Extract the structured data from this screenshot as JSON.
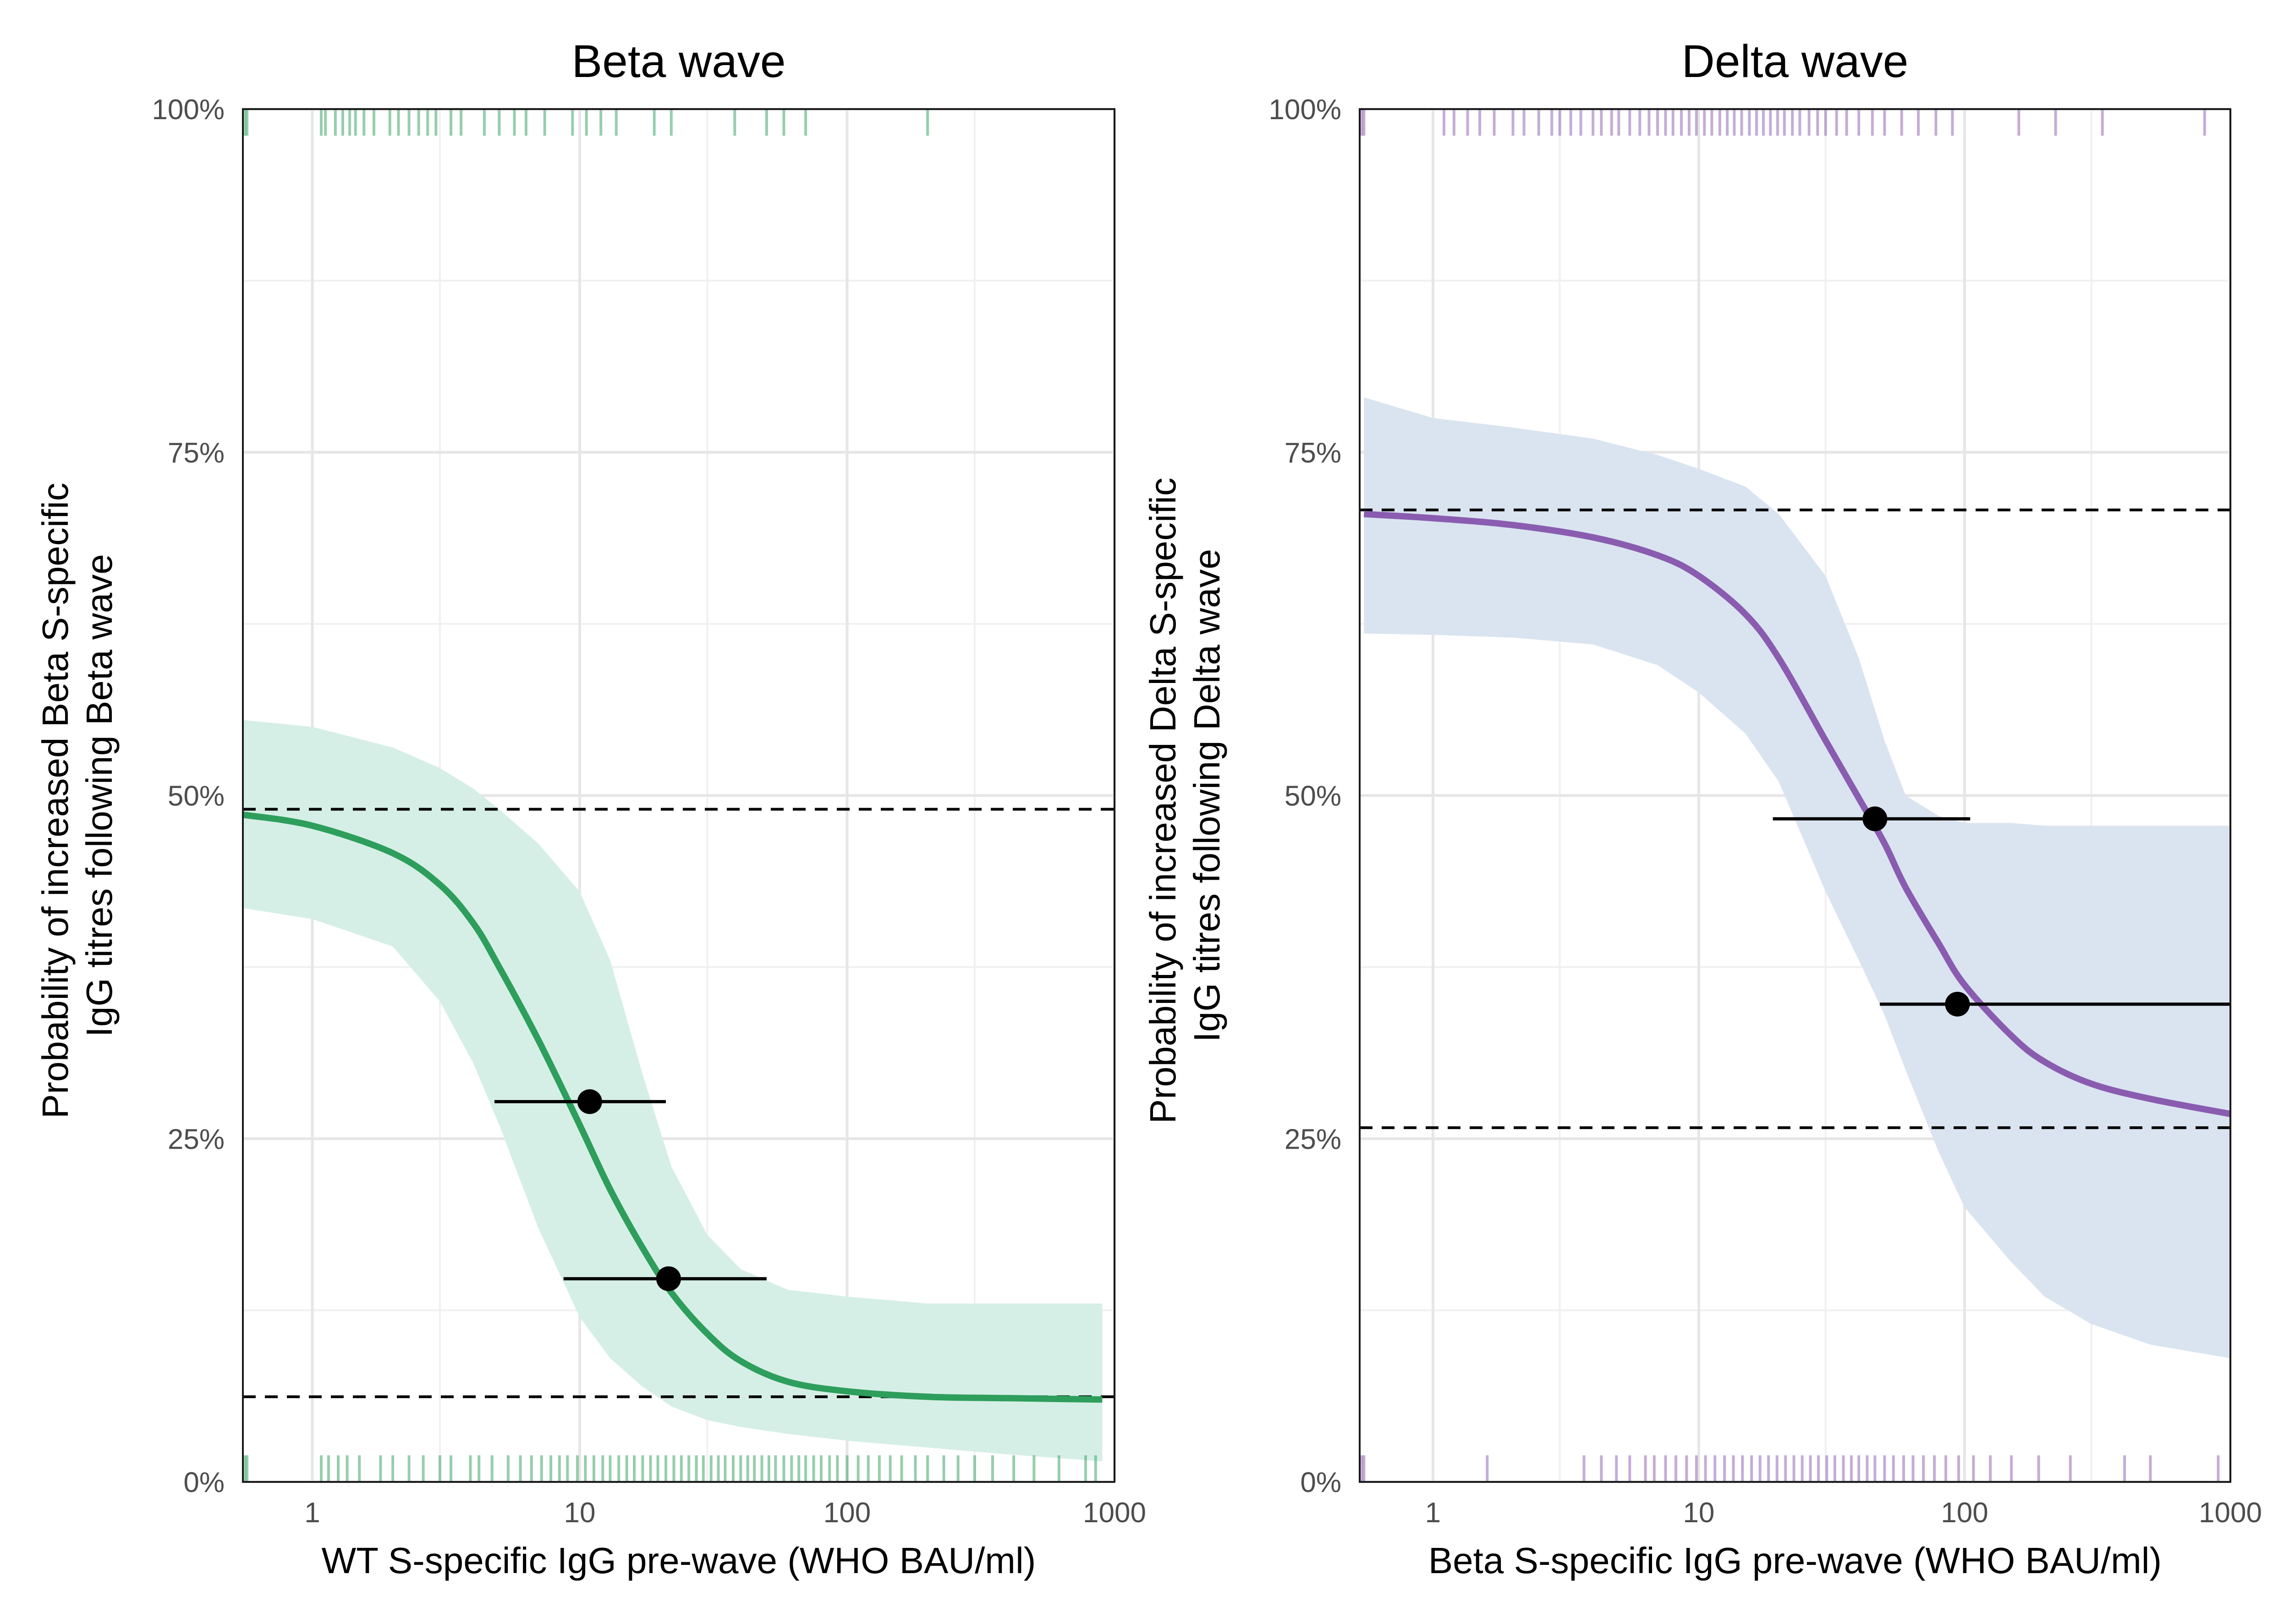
{
  "chart_data": [
    {
      "type": "line",
      "title": "Beta wave",
      "xlabel": "WT S-specific IgG pre-wave (WHO BAU/ml)",
      "ylabel": [
        "Probability of increased Beta S-specific",
        "IgG titres following Beta wave"
      ],
      "x_scale": "log10",
      "xlim": [
        0.55,
        1000
      ],
      "ylim": [
        0,
        1
      ],
      "x_ticks": [
        1,
        10,
        100,
        1000
      ],
      "x_tick_labels": [
        "1",
        "10",
        "100",
        "1000"
      ],
      "y_ticks": [
        0,
        0.25,
        0.5,
        0.75,
        1
      ],
      "y_tick_labels": [
        "0%",
        "25%",
        "50%",
        "75%",
        "100%"
      ],
      "grid": true,
      "colors": {
        "line": "#2e9e5c",
        "band": "#d6efe6",
        "rug": "#2e9e5c"
      },
      "curve": {
        "x": [
          0.55,
          1,
          2,
          3,
          4,
          5,
          7,
          10,
          13,
          17,
          22,
          30,
          40,
          60,
          100,
          200,
          400,
          900
        ],
        "y": [
          0.486,
          0.478,
          0.458,
          0.435,
          0.407,
          0.375,
          0.322,
          0.26,
          0.213,
          0.172,
          0.138,
          0.108,
          0.088,
          0.073,
          0.066,
          0.062,
          0.061,
          0.06
        ]
      },
      "band": {
        "x": [
          0.55,
          1,
          2,
          3,
          4,
          5,
          7,
          10,
          13,
          17,
          22,
          30,
          40,
          60,
          100,
          200,
          400,
          900
        ],
        "lower": [
          0.418,
          0.41,
          0.39,
          0.35,
          0.305,
          0.26,
          0.185,
          0.12,
          0.09,
          0.07,
          0.055,
          0.045,
          0.04,
          0.035,
          0.03,
          0.025,
          0.02,
          0.015
        ],
        "upper": [
          0.555,
          0.55,
          0.535,
          0.52,
          0.505,
          0.49,
          0.465,
          0.43,
          0.38,
          0.3,
          0.23,
          0.18,
          0.155,
          0.14,
          0.135,
          0.13,
          0.13,
          0.13
        ]
      },
      "reference_lines": [
        0.49,
        0.062
      ],
      "points": [
        {
          "x": 10.9,
          "y": 0.277,
          "xmin": 4.8,
          "xmax": 21
        },
        {
          "x": 21.5,
          "y": 0.148,
          "xmin": 8.7,
          "xmax": 50
        }
      ],
      "rug_top": [
        0.56,
        0.57,
        1.08,
        1.12,
        1.22,
        1.3,
        1.38,
        1.45,
        1.56,
        1.7,
        1.95,
        2.1,
        2.3,
        2.5,
        2.7,
        2.9,
        3.3,
        3.6,
        4.4,
        5.0,
        5.7,
        6.3,
        7.4,
        9.4,
        10.6,
        12.0,
        13.7,
        19.0,
        22.0,
        38.0,
        50.0,
        58.0,
        70.0,
        200.0
      ],
      "rug_bottom": [
        0.56,
        0.57,
        1.08,
        1.15,
        1.25,
        1.35,
        1.5,
        1.8,
        2.0,
        2.3,
        2.6,
        3.0,
        3.3,
        3.9,
        4.2,
        4.7,
        5.4,
        6.0,
        6.6,
        7.2,
        7.8,
        8.4,
        9.0,
        9.8,
        10.5,
        11.3,
        12.2,
        13.0,
        14.0,
        15.0,
        16.0,
        17.2,
        18.4,
        19.6,
        21.0,
        22.5,
        24.0,
        25.6,
        27.3,
        29.0,
        31.0,
        33.0,
        35.0,
        37.5,
        40.0,
        42.5,
        45.0,
        48.0,
        51.0,
        54.0,
        58.0,
        62.0,
        66.0,
        70.0,
        75.0,
        80.0,
        86.0,
        92.0,
        100.0,
        110.0,
        120.0,
        132.0,
        145.0,
        160.0,
        180.0,
        200.0,
        230.0,
        260.0,
        300.0,
        350.0,
        420.0,
        500.0,
        620.0,
        780.0,
        850.0
      ]
    },
    {
      "type": "line",
      "title": "Delta wave",
      "xlabel": "Beta S-specific IgG pre-wave (WHO BAU/ml)",
      "ylabel": [
        "Probability of increased Delta S-specific",
        "IgG titres following Delta wave"
      ],
      "x_scale": "log10",
      "xlim": [
        0.53,
        1000
      ],
      "ylim": [
        0,
        1
      ],
      "x_ticks": [
        1,
        10,
        100,
        1000
      ],
      "x_tick_labels": [
        "1",
        "10",
        "100",
        "1000"
      ],
      "y_ticks": [
        0,
        0.25,
        0.5,
        0.75,
        1
      ],
      "y_tick_labels": [
        "0%",
        "25%",
        "50%",
        "75%",
        "100%"
      ],
      "grid": true,
      "colors": {
        "line": "#8a5cb0",
        "band": "#dae4f0",
        "rug": "#8a5cb0"
      },
      "curve": {
        "x": [
          0.55,
          1,
          2,
          4,
          7,
          10,
          15,
          20,
          30,
          40,
          50,
          60,
          80,
          100,
          150,
          200,
          300,
          500,
          1000
        ],
        "y": [
          0.705,
          0.702,
          0.697,
          0.688,
          0.675,
          0.66,
          0.632,
          0.6,
          0.54,
          0.498,
          0.465,
          0.433,
          0.392,
          0.362,
          0.325,
          0.306,
          0.29,
          0.279,
          0.268
        ]
      },
      "band": {
        "x": [
          0.55,
          1,
          2,
          4,
          7,
          10,
          15,
          20,
          30,
          40,
          50,
          60,
          80,
          100,
          150,
          200,
          300,
          500,
          1000
        ],
        "lower": [
          0.618,
          0.617,
          0.615,
          0.61,
          0.595,
          0.575,
          0.545,
          0.51,
          0.43,
          0.38,
          0.34,
          0.3,
          0.24,
          0.2,
          0.16,
          0.135,
          0.115,
          0.1,
          0.09
        ],
        "upper": [
          0.79,
          0.775,
          0.768,
          0.76,
          0.748,
          0.738,
          0.725,
          0.705,
          0.66,
          0.6,
          0.54,
          0.5,
          0.485,
          0.48,
          0.48,
          0.478,
          0.478,
          0.478,
          0.478
        ]
      },
      "reference_lines": [
        0.708,
        0.258
      ],
      "points": [
        {
          "x": 46,
          "y": 0.483,
          "xmin": 19,
          "xmax": 105
        },
        {
          "x": 94,
          "y": 0.348,
          "xmin": 48,
          "xmax": 1000
        }
      ],
      "rug_top": [
        0.54,
        0.55,
        1.1,
        1.2,
        1.35,
        1.5,
        1.7,
        2.0,
        2.2,
        2.5,
        2.8,
        3.0,
        3.3,
        3.6,
        4.0,
        4.3,
        4.7,
        5.0,
        5.5,
        6.0,
        6.5,
        7.0,
        7.5,
        8.0,
        8.6,
        9.2,
        9.8,
        10.5,
        11.2,
        12.0,
        12.8,
        13.6,
        14.5,
        15.5,
        16.5,
        17.5,
        18.6,
        19.8,
        21.0,
        22.5,
        24.0,
        26.0,
        28.0,
        30.0,
        33.0,
        36.0,
        40.0,
        45.0,
        50.0,
        58.0,
        67.0,
        78.0,
        90.0,
        160.0,
        220.0,
        330.0,
        800.0
      ],
      "rug_bottom": [
        0.54,
        0.55,
        1.6,
        3.7,
        4.3,
        4.9,
        5.5,
        6.3,
        6.8,
        7.5,
        8.2,
        9.0,
        9.8,
        10.6,
        11.5,
        12.5,
        13.5,
        14.6,
        15.8,
        17.0,
        18.3,
        19.7,
        21.2,
        22.8,
        24.5,
        26.3,
        28.2,
        30.3,
        32.5,
        35.0,
        37.5,
        40.0,
        43.0,
        46.0,
        50.0,
        54.0,
        59.0,
        64.0,
        70.0,
        77.0,
        85.0,
        95.0,
        108.0,
        125.0,
        150.0,
        190.0,
        250.0,
        400.0,
        500.0,
        900.0
      ]
    }
  ]
}
